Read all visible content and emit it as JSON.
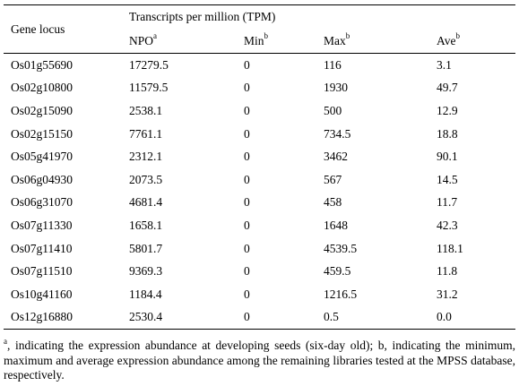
{
  "table": {
    "headers": {
      "gene_locus": "Gene locus",
      "group_label": "Transcripts per million (TPM)",
      "npo": "NPO",
      "npo_sup": "a",
      "min": "Min",
      "min_sup": "b",
      "max": "Max",
      "max_sup": "b",
      "ave": "Ave",
      "ave_sup": "b"
    },
    "rows": [
      {
        "locus": "Os01g55690",
        "npo": "17279.5",
        "min": "0",
        "max": "116",
        "ave": "3.1"
      },
      {
        "locus": "Os02g10800",
        "npo": "11579.5",
        "min": "0",
        "max": "1930",
        "ave": "49.7"
      },
      {
        "locus": "Os02g15090",
        "npo": "2538.1",
        "min": "0",
        "max": "500",
        "ave": "12.9"
      },
      {
        "locus": "Os02g15150",
        "npo": "7761.1",
        "min": "0",
        "max": "734.5",
        "ave": "18.8"
      },
      {
        "locus": "Os05g41970",
        "npo": "2312.1",
        "min": "0",
        "max": "3462",
        "ave": "90.1"
      },
      {
        "locus": "Os06g04930",
        "npo": "2073.5",
        "min": "0",
        "max": "567",
        "ave": "14.5"
      },
      {
        "locus": "Os06g31070",
        "npo": "4681.4",
        "min": "0",
        "max": "458",
        "ave": "11.7"
      },
      {
        "locus": "Os07g11330",
        "npo": "1658.1",
        "min": "0",
        "max": "1648",
        "ave": "42.3"
      },
      {
        "locus": "Os07g11410",
        "npo": "5801.7",
        "min": "0",
        "max": "4539.5",
        "ave": "118.1"
      },
      {
        "locus": "Os07g11510",
        "npo": "9369.3",
        "min": "0",
        "max": "459.5",
        "ave": "11.8"
      },
      {
        "locus": "Os10g41160",
        "npo": "1184.4",
        "min": "0",
        "max": "1216.5",
        "ave": "31.2"
      },
      {
        "locus": "Os12g16880",
        "npo": "2530.4",
        "min": "0",
        "max": "0.5",
        "ave": "0.0"
      }
    ]
  },
  "footnote": {
    "sup": "a",
    "text": ", indicating the expression abundance at developing seeds (six-day old); b, indicating the minimum, maximum and average expression abundance among the remaining libraries tested at the MPSS database, respectively."
  }
}
